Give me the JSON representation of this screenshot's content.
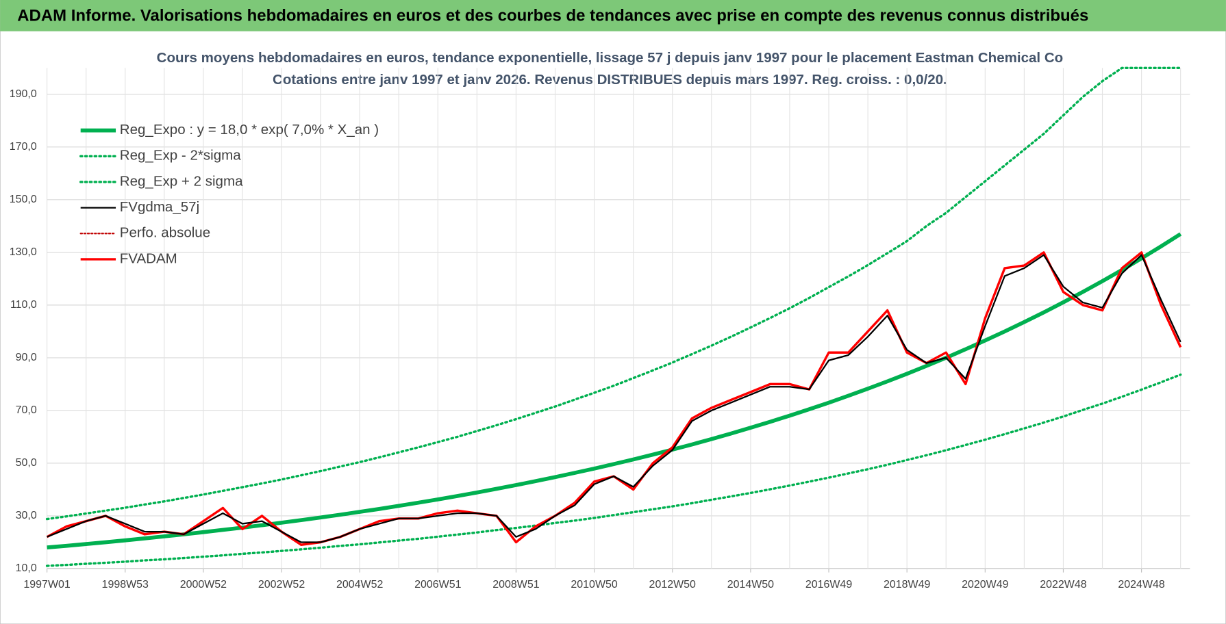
{
  "header": {
    "title": "ADAM Informe. Valorisations hebdomadaires en euros et des courbes de tendances avec prise en compte des revenus connus distribués"
  },
  "chart_data": {
    "type": "line",
    "title": "Cours moyens hebdomadaires en euros, tendance exponentielle, lissage 57 j depuis janv 1997  pour le placement Eastman Chemical Co",
    "subtitle": "Cotations entre janv 1997 et janv 2026. Revenus DISTRIBUES depuis mars 1997.  Reg. croiss. : 0,0/20.",
    "x": [
      "1997W01",
      null,
      null,
      null,
      "1998W53",
      null,
      null,
      null,
      "2000W52",
      null,
      null,
      null,
      "2002W52",
      null,
      null,
      null,
      "2004W52",
      null,
      null,
      null,
      "2006W51",
      null,
      null,
      null,
      "2008W51",
      null,
      null,
      null,
      "2010W50",
      null,
      null,
      null,
      "2012W50",
      null,
      null,
      null,
      "2014W50",
      null,
      null,
      null,
      "2016W49",
      null,
      null,
      null,
      "2018W49",
      null,
      null,
      null,
      "2020W49",
      null,
      null,
      null,
      "2022W48",
      null,
      null,
      null,
      "2024W48",
      null,
      null
    ],
    "ylim": [
      10,
      200
    ],
    "yticks": [
      {
        "value": 10,
        "label": "10,0"
      },
      {
        "value": 30,
        "label": "30,0"
      },
      {
        "value": 50,
        "label": "50,0"
      },
      {
        "value": 70,
        "label": "70,0"
      },
      {
        "value": 90,
        "label": "90,0"
      },
      {
        "value": 110,
        "label": "110,0"
      },
      {
        "value": 130,
        "label": "130,0"
      },
      {
        "value": 150,
        "label": "150,0"
      },
      {
        "value": 170,
        "label": "170,0"
      },
      {
        "value": 190,
        "label": "190,0"
      }
    ],
    "grid": true,
    "legend": "top-left",
    "series": [
      {
        "name": "Reg_Expo : y = 18,0 * exp( 7,0% *  X_an )",
        "color": "#00b050",
        "style": "solid",
        "width": 5,
        "values": [
          18.0,
          18.64,
          19.3,
          19.99,
          20.7,
          21.44,
          22.2,
          22.99,
          23.81,
          24.66,
          25.54,
          26.45,
          27.39,
          28.37,
          29.38,
          30.42,
          31.51,
          32.63,
          33.79,
          34.99,
          36.24,
          37.53,
          38.87,
          40.25,
          41.68,
          43.17,
          44.71,
          46.3,
          47.95,
          49.65,
          51.42,
          53.25,
          55.15,
          57.11,
          59.15,
          61.25,
          63.43,
          65.69,
          68.03,
          70.46,
          72.97,
          75.56,
          78.26,
          81.04,
          83.93,
          86.92,
          90.01,
          93.22,
          96.54,
          99.98,
          103.54,
          107.22,
          111.04,
          115.0,
          119.09,
          123.33,
          127.73,
          132.28,
          136.99
        ]
      },
      {
        "name": "Reg_Exp - 2*sigma",
        "color": "#00b050",
        "style": "dotted",
        "width": 3,
        "values": [
          11.0,
          11.4,
          11.8,
          12.2,
          12.6,
          13.1,
          13.5,
          14.0,
          14.5,
          15.0,
          15.6,
          16.1,
          16.7,
          17.3,
          17.9,
          18.6,
          19.2,
          19.9,
          20.6,
          21.3,
          22.1,
          22.9,
          23.7,
          24.6,
          25.4,
          26.3,
          27.3,
          28.2,
          29.2,
          30.3,
          31.4,
          32.5,
          33.6,
          34.8,
          36.1,
          37.4,
          38.7,
          40.1,
          41.5,
          43.0,
          44.5,
          46.1,
          47.7,
          49.4,
          51.2,
          53.0,
          54.9,
          56.9,
          58.9,
          61.0,
          63.2,
          65.4,
          67.7,
          70.2,
          72.6,
          75.2,
          77.9,
          80.7,
          83.6
        ]
      },
      {
        "name": "Reg_Exp + 2 sigma",
        "color": "#00b050",
        "style": "dotted",
        "width": 3,
        "values": [
          28.8,
          29.8,
          30.9,
          32.0,
          33.1,
          34.3,
          35.5,
          36.8,
          38.1,
          39.5,
          40.9,
          42.3,
          43.8,
          45.4,
          47.0,
          48.7,
          50.4,
          52.2,
          54.1,
          56.0,
          58.0,
          60.0,
          62.2,
          64.4,
          66.7,
          69.1,
          71.5,
          74.1,
          76.7,
          79.4,
          82.3,
          85.2,
          88.2,
          91.4,
          94.6,
          98.0,
          101.5,
          105.1,
          108.8,
          112.7,
          116.8,
          120.9,
          125.2,
          129.7,
          134.3,
          140,
          145,
          151,
          157,
          163,
          169,
          175,
          182,
          189,
          195,
          200,
          200,
          200,
          200
        ]
      },
      {
        "name": "FVgdma_57j",
        "color": "#000000",
        "style": "solid",
        "width": 2,
        "values": [
          22,
          25,
          28,
          30,
          27,
          24,
          24,
          23,
          27,
          31,
          27,
          28,
          24,
          20,
          20,
          22,
          25,
          27,
          29,
          29,
          30,
          31,
          31,
          30,
          22,
          25,
          30,
          34,
          42,
          45,
          41,
          49,
          55,
          66,
          70,
          73,
          76,
          79,
          79,
          78,
          89,
          91,
          98,
          106,
          93,
          88,
          90,
          82,
          102,
          121,
          124,
          129,
          117,
          111,
          109,
          122,
          129,
          112,
          96
        ]
      },
      {
        "name": "Perfo. absolue",
        "color": "#c00000",
        "style": "dotted",
        "width": 2,
        "values": [
          null,
          null,
          null,
          null,
          null,
          null,
          null,
          null,
          null,
          null,
          null,
          null,
          null,
          null,
          null,
          null,
          null,
          null,
          null,
          null,
          null,
          null,
          null,
          null,
          null,
          null,
          null,
          null,
          null,
          null,
          null,
          null,
          null,
          null,
          null,
          null,
          null,
          null,
          null,
          null,
          null,
          null,
          null,
          null,
          null,
          null,
          null,
          null,
          null,
          null,
          null,
          null,
          null,
          null,
          null,
          null,
          null,
          null,
          null
        ]
      },
      {
        "name": "FVADAM",
        "color": "#ff0000",
        "style": "solid",
        "width": 3,
        "values": [
          22,
          26,
          28,
          30,
          26,
          23,
          24,
          23,
          28,
          33,
          25,
          30,
          24,
          19,
          20,
          22,
          25,
          28,
          29,
          29,
          31,
          32,
          31,
          30,
          20,
          26,
          30,
          35,
          43,
          45,
          40,
          50,
          56,
          67,
          71,
          74,
          77,
          80,
          80,
          78,
          92,
          92,
          100,
          108,
          92,
          88,
          92,
          80,
          105,
          124,
          125,
          130,
          115,
          110,
          108,
          124,
          130,
          110,
          94
        ]
      }
    ]
  }
}
